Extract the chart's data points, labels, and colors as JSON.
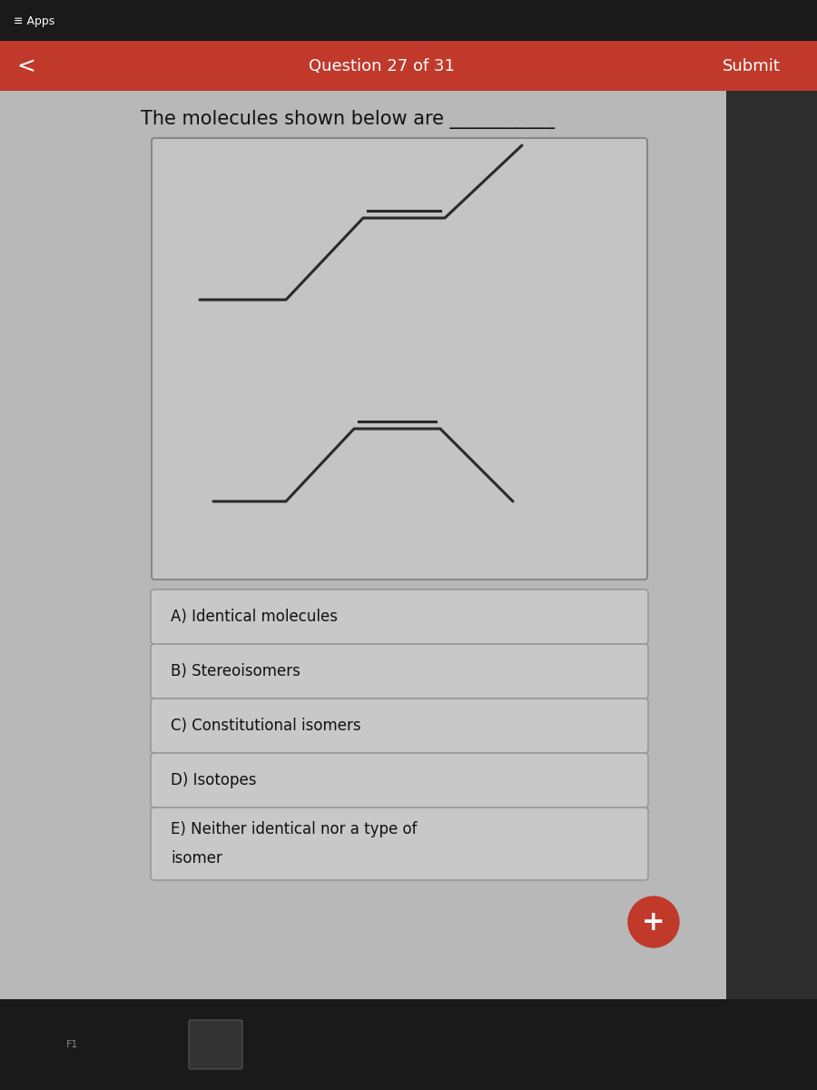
{
  "question_header": "Question 27 of 31",
  "submit_text": "Submit",
  "question_text": "The molecules shown below are ___________",
  "answers": [
    "A) Identical molecules",
    "B) Stereoisomers",
    "C) Constitutional isomers",
    "D) Isotopes",
    "E) Neither identical nor a type of\nisomer"
  ],
  "header_bg_color": "#c0392b",
  "header_text_color": "#ffffff",
  "bg_color": "#b0b0b0",
  "content_bg_color": "#b8b8b8",
  "box_border_color": "#888888",
  "answer_bg_color": "#c8c8c8",
  "answer_border_color": "#999999",
  "molecule_box_bg": "#c4c4c4",
  "molecule_line_color": "#2a2a2a",
  "plus_button_color": "#c0392b",
  "top_bar_color": "#1a1a1a",
  "right_panel_color": "#2d2d2d",
  "bottom_bar_color": "#1a1a1a"
}
